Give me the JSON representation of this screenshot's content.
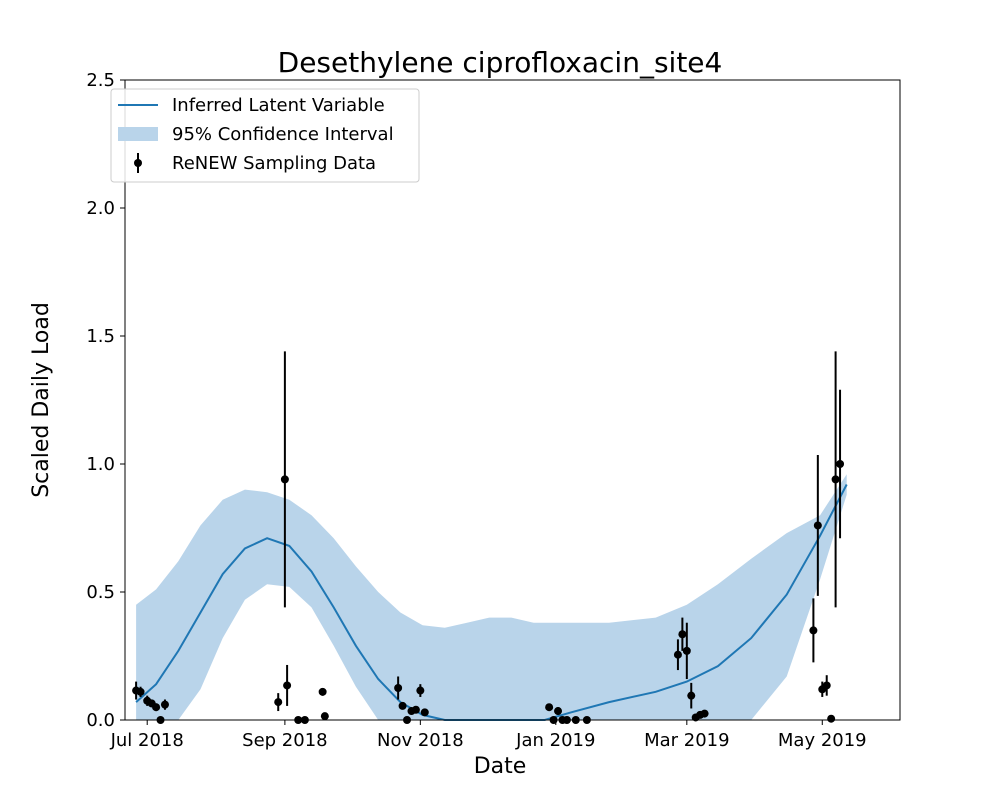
{
  "chart_data": {
    "type": "line",
    "title": "Desethylene ciprofloxacin_site4",
    "xlabel": "Date",
    "ylabel": "Scaled Daily Load",
    "ylim": [
      0.0,
      2.5
    ],
    "xlim": [
      "2018-06-21",
      "2019-06-05"
    ],
    "y_ticks": [
      "0.0",
      "0.5",
      "1.0",
      "1.5",
      "2.0",
      "2.5"
    ],
    "x_ticks": [
      {
        "date": "2018-07-01",
        "label": "Jul 2018"
      },
      {
        "date": "2018-09-01",
        "label": "Sep 2018"
      },
      {
        "date": "2018-11-01",
        "label": "Nov 2018"
      },
      {
        "date": "2019-01-01",
        "label": "Jan 2019"
      },
      {
        "date": "2019-03-01",
        "label": "Mar 2019"
      },
      {
        "date": "2019-05-01",
        "label": "May 2019"
      }
    ],
    "grid": false,
    "legend": {
      "position": "top-left",
      "entries": [
        "Inferred Latent Variable",
        "95% Confidence Interval",
        "ReNEW Sampling Data"
      ]
    },
    "series": [
      {
        "name": "Inferred Latent Variable",
        "kind": "line",
        "color": "#1f77b4",
        "points": [
          [
            "2018-06-26",
            0.07
          ],
          [
            "2018-07-05",
            0.14
          ],
          [
            "2018-07-15",
            0.27
          ],
          [
            "2018-07-25",
            0.42
          ],
          [
            "2018-08-04",
            0.57
          ],
          [
            "2018-08-14",
            0.67
          ],
          [
            "2018-08-24",
            0.71
          ],
          [
            "2018-09-03",
            0.68
          ],
          [
            "2018-09-13",
            0.58
          ],
          [
            "2018-09-23",
            0.44
          ],
          [
            "2018-10-03",
            0.29
          ],
          [
            "2018-10-13",
            0.16
          ],
          [
            "2018-10-23",
            0.07
          ],
          [
            "2018-11-02",
            0.02
          ],
          [
            "2018-11-12",
            0.0
          ],
          [
            "2018-12-02",
            0.0
          ],
          [
            "2018-12-27",
            0.0
          ],
          [
            "2019-01-08",
            0.03
          ],
          [
            "2019-01-25",
            0.07
          ],
          [
            "2019-02-15",
            0.11
          ],
          [
            "2019-03-01",
            0.15
          ],
          [
            "2019-03-15",
            0.21
          ],
          [
            "2019-03-30",
            0.32
          ],
          [
            "2019-04-15",
            0.49
          ],
          [
            "2019-04-30",
            0.72
          ],
          [
            "2019-05-12",
            0.92
          ]
        ]
      },
      {
        "name": "95% Confidence Interval",
        "kind": "band",
        "color": "#b9d4ea",
        "points": [
          [
            "2018-06-26",
            0.0,
            0.45
          ],
          [
            "2018-07-05",
            0.0,
            0.51
          ],
          [
            "2018-07-15",
            0.0,
            0.62
          ],
          [
            "2018-07-25",
            0.12,
            0.76
          ],
          [
            "2018-08-04",
            0.32,
            0.86
          ],
          [
            "2018-08-14",
            0.47,
            0.9
          ],
          [
            "2018-08-24",
            0.53,
            0.89
          ],
          [
            "2018-09-03",
            0.52,
            0.86
          ],
          [
            "2018-09-13",
            0.44,
            0.8
          ],
          [
            "2018-09-23",
            0.29,
            0.71
          ],
          [
            "2018-10-03",
            0.13,
            0.6
          ],
          [
            "2018-10-13",
            0.0,
            0.5
          ],
          [
            "2018-10-23",
            0.0,
            0.42
          ],
          [
            "2018-11-02",
            0.0,
            0.37
          ],
          [
            "2018-11-12",
            0.0,
            0.36
          ],
          [
            "2018-11-22",
            0.0,
            0.38
          ],
          [
            "2018-12-02",
            0.0,
            0.4
          ],
          [
            "2018-12-12",
            0.0,
            0.4
          ],
          [
            "2018-12-22",
            0.0,
            0.38
          ],
          [
            "2019-01-08",
            0.0,
            0.38
          ],
          [
            "2019-01-25",
            0.0,
            0.38
          ],
          [
            "2019-02-15",
            0.0,
            0.4
          ],
          [
            "2019-03-01",
            0.0,
            0.45
          ],
          [
            "2019-03-15",
            0.0,
            0.53
          ],
          [
            "2019-03-30",
            0.0,
            0.63
          ],
          [
            "2019-04-15",
            0.17,
            0.73
          ],
          [
            "2019-04-30",
            0.55,
            0.8
          ],
          [
            "2019-05-12",
            0.88,
            0.96
          ]
        ]
      },
      {
        "name": "ReNEW Sampling Data",
        "kind": "errorbar",
        "color": "#000000",
        "points": [
          [
            "2018-06-26",
            0.115,
            0.035
          ],
          [
            "2018-06-28",
            0.11,
            0.02
          ],
          [
            "2018-07-01",
            0.075,
            0.02
          ],
          [
            "2018-07-03",
            0.065,
            0.015
          ],
          [
            "2018-07-05",
            0.05,
            0.015
          ],
          [
            "2018-07-07",
            0.0,
            0.0
          ],
          [
            "2018-07-09",
            0.06,
            0.02
          ],
          [
            "2018-08-29",
            0.07,
            0.035
          ],
          [
            "2018-09-01",
            0.94,
            0.5
          ],
          [
            "2018-09-02",
            0.135,
            0.08
          ],
          [
            "2018-09-07",
            0.0,
            0.0
          ],
          [
            "2018-09-10",
            0.0,
            0.0
          ],
          [
            "2018-09-18",
            0.11,
            0.015
          ],
          [
            "2018-09-19",
            0.015,
            0.0
          ],
          [
            "2018-10-22",
            0.125,
            0.045
          ],
          [
            "2018-10-24",
            0.055,
            0.0
          ],
          [
            "2018-10-26",
            0.0,
            0.0
          ],
          [
            "2018-10-28",
            0.035,
            0.0
          ],
          [
            "2018-10-30",
            0.04,
            0.0
          ],
          [
            "2018-11-01",
            0.115,
            0.025
          ],
          [
            "2018-11-03",
            0.03,
            0.0
          ],
          [
            "2018-12-29",
            0.05,
            0.01
          ],
          [
            "2018-12-31",
            0.0,
            0.0
          ],
          [
            "2019-01-02",
            0.035,
            0.015
          ],
          [
            "2019-01-04",
            0.0,
            0.0
          ],
          [
            "2019-01-06",
            0.0,
            0.0
          ],
          [
            "2019-01-10",
            0.0,
            0.0
          ],
          [
            "2019-01-15",
            0.0,
            0.0
          ],
          [
            "2019-02-25",
            0.255,
            0.06
          ],
          [
            "2019-02-27",
            0.335,
            0.065
          ],
          [
            "2019-03-01",
            0.27,
            0.11
          ],
          [
            "2019-03-03",
            0.095,
            0.05
          ],
          [
            "2019-03-05",
            0.01,
            0.0
          ],
          [
            "2019-03-07",
            0.02,
            0.0
          ],
          [
            "2019-03-09",
            0.025,
            0.0
          ],
          [
            "2019-04-27",
            0.35,
            0.125
          ],
          [
            "2019-04-29",
            0.76,
            0.275
          ],
          [
            "2019-05-01",
            0.12,
            0.03
          ],
          [
            "2019-05-03",
            0.135,
            0.04
          ],
          [
            "2019-05-05",
            0.005,
            0.0
          ],
          [
            "2019-05-07",
            0.94,
            0.5
          ],
          [
            "2019-05-09",
            1.0,
            0.29
          ]
        ]
      }
    ]
  }
}
